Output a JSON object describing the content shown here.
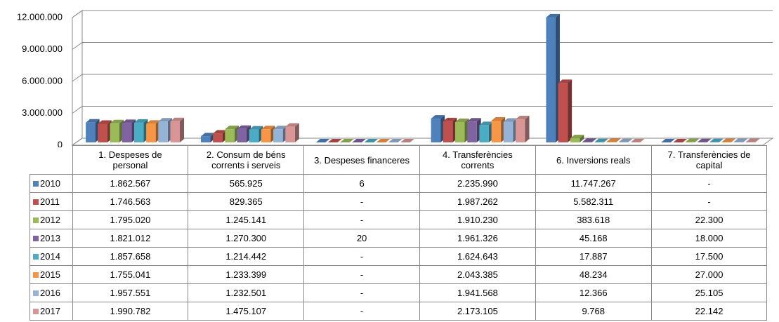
{
  "chart_data": {
    "type": "bar3d",
    "categories": [
      "1. Despeses de personal",
      "2. Consum de béns corrents i serveis",
      "3. Despeses financeres",
      "4. Transferències corrents",
      "6. Inversions reals",
      "7. Transferències de capital"
    ],
    "ylim": [
      0,
      12000000
    ],
    "yticks": [
      0,
      {
        "value": 3000000,
        "label": "3.000.000"
      },
      {
        "value": 6000000,
        "label": "6.000.000"
      },
      {
        "value": 9000000,
        "label": "9.000.000"
      },
      {
        "value": 12000000,
        "label": "12.000.000"
      }
    ],
    "grid": true,
    "series": [
      {
        "name": "2010",
        "color": "#4f81bd",
        "values": [
          1862567,
          565925,
          6,
          2235990,
          11747267,
          0
        ],
        "value_labels": [
          "1.862.567",
          "565.925",
          "6",
          "2.235.990",
          "11.747.267",
          "-"
        ]
      },
      {
        "name": "2011",
        "color": "#c0504d",
        "values": [
          1746563,
          829365,
          0,
          1987262,
          5582311,
          0
        ],
        "value_labels": [
          "1.746.563",
          "829.365",
          "-",
          "1.987.262",
          "5.582.311",
          "-"
        ]
      },
      {
        "name": "2012",
        "color": "#9bbb59",
        "values": [
          1795020,
          1245141,
          0,
          1910230,
          383618,
          22300
        ],
        "value_labels": [
          "1.795.020",
          "1.245.141",
          "-",
          "1.910.230",
          "383.618",
          "22.300"
        ]
      },
      {
        "name": "2013",
        "color": "#8064a2",
        "values": [
          1821012,
          1270300,
          20,
          1961326,
          45168,
          18000
        ],
        "value_labels": [
          "1.821.012",
          "1.270.300",
          "20",
          "1.961.326",
          "45.168",
          "18.000"
        ]
      },
      {
        "name": "2014",
        "color": "#4bacc6",
        "values": [
          1857658,
          1214442,
          0,
          1624643,
          17887,
          17500
        ],
        "value_labels": [
          "1.857.658",
          "1.214.442",
          "-",
          "1.624.643",
          "17.887",
          "17.500"
        ]
      },
      {
        "name": "2015",
        "color": "#f79646",
        "values": [
          1755041,
          1233399,
          0,
          2043385,
          48234,
          27000
        ],
        "value_labels": [
          "1.755.041",
          "1.233.399",
          "-",
          "2.043.385",
          "48.234",
          "27.000"
        ]
      },
      {
        "name": "2016",
        "color": "#95b3d7",
        "values": [
          1957551,
          1232501,
          0,
          1941568,
          12366,
          25105
        ],
        "value_labels": [
          "1.957.551",
          "1.232.501",
          "-",
          "1.941.568",
          "12.366",
          "25.105"
        ]
      },
      {
        "name": "2017",
        "color": "#d99694",
        "values": [
          1990782,
          1475107,
          0,
          2173105,
          9768,
          22142
        ],
        "value_labels": [
          "1.990.782",
          "1.475.107",
          "-",
          "2.173.105",
          "9.768",
          "22.142"
        ]
      }
    ]
  }
}
